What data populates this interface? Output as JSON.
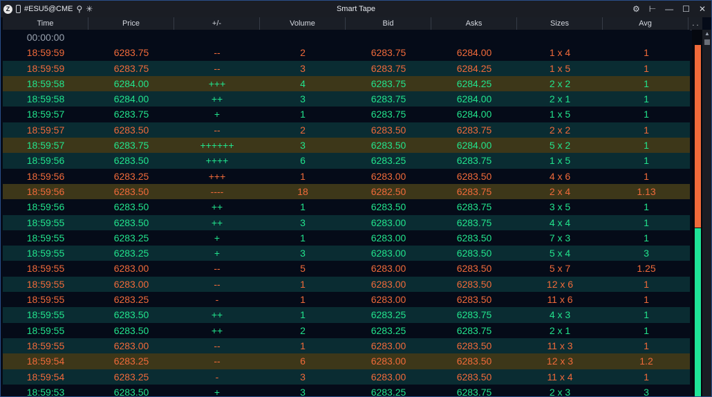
{
  "titlebar": {
    "logo": "Z",
    "symbol": "#ESU5@CME",
    "title": "Smart Tape",
    "icons": [
      "link-icon",
      "search-icon",
      "asterisk-icon",
      "gear-icon",
      "pin-icon",
      "minimize-icon",
      "maximize-icon",
      "close-icon"
    ]
  },
  "columns": [
    "Time",
    "Price",
    "+/-",
    "Volume",
    "Bid",
    "Asks",
    "Sizes",
    "Avg",
    ". ."
  ],
  "header_row_time": "00:00:00",
  "rows": [
    {
      "time": "18:59:59",
      "price": "6283.75",
      "pm": "--",
      "vol": "2",
      "bid": "6283.75",
      "ask": "6284.00",
      "size": "1 x 4",
      "avg": "1",
      "dir": "dn",
      "bg": "dark"
    },
    {
      "time": "18:59:59",
      "price": "6283.75",
      "pm": "--",
      "vol": "3",
      "bid": "6283.75",
      "ask": "6284.25",
      "size": "1 x 5",
      "avg": "1",
      "dir": "dn",
      "bg": "teal"
    },
    {
      "time": "18:59:58",
      "price": "6284.00",
      "pm": "+++",
      "vol": "4",
      "bid": "6283.75",
      "ask": "6284.25",
      "size": "2 x 2",
      "avg": "1",
      "dir": "up",
      "bg": "gold"
    },
    {
      "time": "18:59:58",
      "price": "6284.00",
      "pm": "++",
      "vol": "3",
      "bid": "6283.75",
      "ask": "6284.00",
      "size": "2 x 1",
      "avg": "1",
      "dir": "up",
      "bg": "teal"
    },
    {
      "time": "18:59:57",
      "price": "6283.75",
      "pm": "+",
      "vol": "1",
      "bid": "6283.75",
      "ask": "6284.00",
      "size": "1 x 5",
      "avg": "1",
      "dir": "up",
      "bg": "dark"
    },
    {
      "time": "18:59:57",
      "price": "6283.50",
      "pm": "--",
      "vol": "2",
      "bid": "6283.50",
      "ask": "6283.75",
      "size": "2 x 2",
      "avg": "1",
      "dir": "dn",
      "bg": "teal"
    },
    {
      "time": "18:59:57",
      "price": "6283.75",
      "pm": "++++++",
      "vol": "3",
      "bid": "6283.50",
      "ask": "6284.00",
      "size": "5 x 2",
      "avg": "1",
      "dir": "up",
      "bg": "gold"
    },
    {
      "time": "18:59:56",
      "price": "6283.50",
      "pm": "++++",
      "vol": "6",
      "bid": "6283.25",
      "ask": "6283.75",
      "size": "1 x 5",
      "avg": "1",
      "dir": "up",
      "bg": "teal"
    },
    {
      "time": "18:59:56",
      "price": "6283.25",
      "pm": "+++",
      "vol": "1",
      "bid": "6283.00",
      "ask": "6283.50",
      "size": "4 x 6",
      "avg": "1",
      "dir": "dn",
      "bg": "dark"
    },
    {
      "time": "18:59:56",
      "price": "6283.50",
      "pm": "----",
      "vol": "18",
      "bid": "6282.50",
      "ask": "6283.75",
      "size": "2 x 4",
      "avg": "1.13",
      "dir": "dn",
      "bg": "gold"
    },
    {
      "time": "18:59:56",
      "price": "6283.50",
      "pm": "++",
      "vol": "1",
      "bid": "6283.50",
      "ask": "6283.75",
      "size": "3 x 5",
      "avg": "1",
      "dir": "up",
      "bg": "dark"
    },
    {
      "time": "18:59:55",
      "price": "6283.50",
      "pm": "++",
      "vol": "3",
      "bid": "6283.00",
      "ask": "6283.75",
      "size": "4 x 4",
      "avg": "1",
      "dir": "up",
      "bg": "teal"
    },
    {
      "time": "18:59:55",
      "price": "6283.25",
      "pm": "+",
      "vol": "1",
      "bid": "6283.00",
      "ask": "6283.50",
      "size": "7 x 3",
      "avg": "1",
      "dir": "up",
      "bg": "dark"
    },
    {
      "time": "18:59:55",
      "price": "6283.25",
      "pm": "+",
      "vol": "3",
      "bid": "6283.00",
      "ask": "6283.50",
      "size": "5 x 4",
      "avg": "3",
      "dir": "up",
      "bg": "teal"
    },
    {
      "time": "18:59:55",
      "price": "6283.00",
      "pm": "--",
      "vol": "5",
      "bid": "6283.00",
      "ask": "6283.50",
      "size": "5 x 7",
      "avg": "1.25",
      "dir": "dn",
      "bg": "dark"
    },
    {
      "time": "18:59:55",
      "price": "6283.00",
      "pm": "--",
      "vol": "1",
      "bid": "6283.00",
      "ask": "6283.50",
      "size": "12 x 6",
      "avg": "1",
      "dir": "dn",
      "bg": "teal"
    },
    {
      "time": "18:59:55",
      "price": "6283.25",
      "pm": "-",
      "vol": "1",
      "bid": "6283.00",
      "ask": "6283.50",
      "size": "11 x 6",
      "avg": "1",
      "dir": "dn",
      "bg": "dark"
    },
    {
      "time": "18:59:55",
      "price": "6283.50",
      "pm": "++",
      "vol": "1",
      "bid": "6283.25",
      "ask": "6283.75",
      "size": "4 x 3",
      "avg": "1",
      "dir": "up",
      "bg": "teal"
    },
    {
      "time": "18:59:55",
      "price": "6283.50",
      "pm": "++",
      "vol": "2",
      "bid": "6283.25",
      "ask": "6283.75",
      "size": "2 x 1",
      "avg": "1",
      "dir": "up",
      "bg": "dark"
    },
    {
      "time": "18:59:55",
      "price": "6283.00",
      "pm": "--",
      "vol": "1",
      "bid": "6283.00",
      "ask": "6283.50",
      "size": "11 x 3",
      "avg": "1",
      "dir": "dn",
      "bg": "teal"
    },
    {
      "time": "18:59:54",
      "price": "6283.25",
      "pm": "--",
      "vol": "6",
      "bid": "6283.00",
      "ask": "6283.50",
      "size": "12 x 3",
      "avg": "1.2",
      "dir": "dn",
      "bg": "gold"
    },
    {
      "time": "18:59:54",
      "price": "6283.25",
      "pm": "-",
      "vol": "3",
      "bid": "6283.00",
      "ask": "6283.50",
      "size": "11 x 4",
      "avg": "1",
      "dir": "dn",
      "bg": "teal"
    },
    {
      "time": "18:59:53",
      "price": "6283.50",
      "pm": "+",
      "vol": "3",
      "bid": "6283.25",
      "ask": "6283.75",
      "size": "2 x 3",
      "avg": "3",
      "dir": "up",
      "bg": "dark"
    }
  ],
  "colors": {
    "up": "#22e38c",
    "down": "#f06a3a",
    "row_teal": "#0a2c32",
    "row_gold": "#3d3719",
    "row_dark": "#050b18"
  },
  "pressure_bar": {
    "sell_fraction": 0.52,
    "buy_fraction": 0.48
  }
}
